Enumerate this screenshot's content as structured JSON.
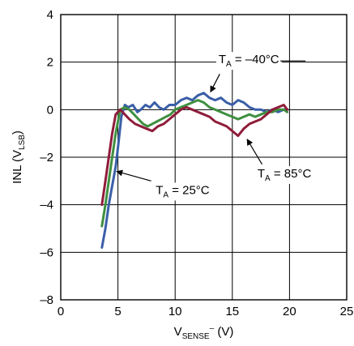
{
  "chart_data": {
    "type": "line",
    "x_axis": {
      "label_main": "V",
      "label_sub": "SENSE",
      "label_sup": "–",
      "label_tail": " (V)",
      "range": [
        0,
        25
      ],
      "ticks": [
        0,
        5,
        10,
        15,
        20,
        25
      ],
      "tick_labels": [
        "0",
        "5",
        "10",
        "15",
        "20",
        "25"
      ]
    },
    "y_axis": {
      "label_main": "INL (V",
      "label_sub": "LSB",
      "label_tail": ")",
      "range": [
        -8,
        4
      ],
      "ticks": [
        -8,
        -6,
        -4,
        -2,
        0,
        2,
        4
      ],
      "tick_labels": [
        "–8",
        "–6",
        "–4",
        "–2",
        "0",
        "2",
        "4"
      ]
    },
    "grid": true,
    "legend": "none",
    "series": [
      {
        "color": "#3a5fa8",
        "x": [
          3.6,
          3.9,
          4.2,
          4.5,
          4.8,
          5.0,
          5.3,
          5.6,
          5.9,
          6.3,
          6.7,
          7.0,
          7.4,
          7.8,
          8.2,
          8.6,
          9.0,
          9.5,
          10.0,
          10.5,
          11.0,
          11.5,
          12.0,
          12.5,
          13.0,
          13.5,
          14.0,
          14.5,
          15.0,
          15.5,
          16.0,
          16.5,
          17.0,
          17.5,
          18.0,
          18.5,
          19.0,
          19.5,
          19.8
        ],
        "y": [
          -5.8,
          -5.0,
          -4.0,
          -3.2,
          -2.4,
          -1.6,
          -0.3,
          0.2,
          0.1,
          0.2,
          -0.1,
          0.0,
          0.2,
          0.1,
          0.3,
          0.1,
          0.0,
          0.2,
          0.2,
          0.4,
          0.5,
          0.4,
          0.6,
          0.7,
          0.5,
          0.4,
          0.5,
          0.3,
          0.2,
          0.4,
          0.3,
          0.1,
          0.0,
          0.0,
          -0.1,
          0.0,
          -0.1,
          0.0,
          0.0
        ]
      },
      {
        "color": "#3f8f3f",
        "x": [
          3.6,
          3.9,
          4.2,
          4.5,
          4.8,
          5.2,
          5.6,
          6.0,
          6.4,
          6.8,
          7.2,
          7.6,
          8.0,
          8.4,
          8.8,
          9.2,
          9.6,
          10.0,
          10.5,
          11.0,
          11.5,
          12.0,
          12.5,
          13.0,
          13.5,
          14.0,
          14.5,
          15.0,
          15.5,
          16.0,
          16.5,
          17.0,
          17.5,
          18.0,
          18.5,
          19.0,
          19.5,
          19.8
        ],
        "y": [
          -4.9,
          -4.0,
          -3.0,
          -2.0,
          -1.0,
          0.0,
          0.1,
          0.0,
          -0.2,
          -0.4,
          -0.6,
          -0.7,
          -0.6,
          -0.5,
          -0.4,
          -0.3,
          -0.2,
          0.0,
          0.1,
          0.2,
          0.3,
          0.4,
          0.3,
          0.1,
          0.0,
          -0.1,
          -0.2,
          -0.3,
          -0.4,
          -0.3,
          -0.2,
          -0.3,
          -0.2,
          -0.1,
          -0.1,
          0.0,
          0.0,
          -0.1
        ]
      },
      {
        "color": "#8f1c3a",
        "x": [
          3.6,
          3.9,
          4.2,
          4.5,
          4.8,
          5.2,
          5.6,
          6.0,
          6.5,
          7.0,
          7.5,
          8.0,
          8.5,
          9.0,
          9.5,
          10.0,
          10.5,
          11.0,
          11.5,
          12.0,
          12.5,
          13.0,
          13.5,
          14.0,
          14.5,
          15.0,
          15.5,
          16.0,
          16.5,
          17.0,
          17.5,
          18.0,
          18.5,
          19.0,
          19.5,
          19.8
        ],
        "y": [
          -4.0,
          -3.0,
          -2.0,
          -1.0,
          -0.2,
          0.0,
          -0.2,
          -0.4,
          -0.6,
          -0.7,
          -0.8,
          -0.9,
          -0.7,
          -0.6,
          -0.4,
          -0.2,
          0.0,
          0.1,
          0.0,
          -0.1,
          -0.2,
          -0.3,
          -0.5,
          -0.6,
          -0.7,
          -0.9,
          -1.1,
          -0.8,
          -0.6,
          -0.5,
          -0.4,
          -0.2,
          0.0,
          0.1,
          0.2,
          0.0
        ]
      }
    ],
    "annotations": [
      {
        "main": "T",
        "sub": "A",
        "tail": " = –40°C",
        "text_x": 13.8,
        "text_y": 1.95,
        "arrow_from": [
          13.9,
          1.5
        ],
        "arrow_to": [
          13.1,
          0.75
        ],
        "leader_from": [
          19.2,
          2.05
        ],
        "leader_to": [
          21.4,
          2.05
        ]
      },
      {
        "main": "T",
        "sub": "A",
        "tail": " = 25°C",
        "text_x": 8.3,
        "text_y": -3.55,
        "arrow_from": [
          7.9,
          -3.0
        ],
        "arrow_to": [
          4.9,
          -2.6
        ]
      },
      {
        "main": "T",
        "sub": "A",
        "tail": " = 85°C",
        "text_x": 17.2,
        "text_y": -2.85,
        "arrow_from": [
          17.6,
          -2.3
        ],
        "arrow_to": [
          16.3,
          -1.25
        ]
      }
    ]
  }
}
